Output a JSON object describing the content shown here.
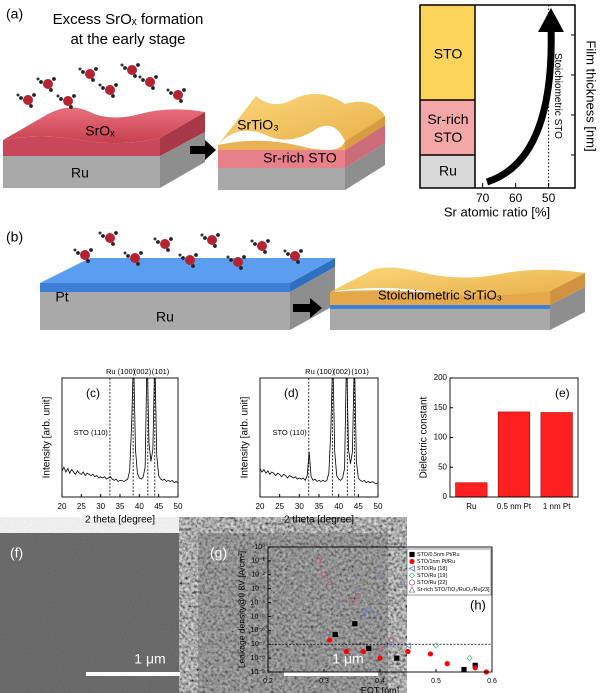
{
  "panel_labels": [
    "(a)",
    "(b)",
    "(c)",
    "(d)",
    "(e)",
    "(f)",
    "(g)",
    "(h)"
  ],
  "schematic_a": {
    "caption": [
      "Excess SrOₓ formation",
      "at the early stage"
    ],
    "before_layers": [
      "SrOₓ",
      "Ru"
    ],
    "after_layers": [
      "SrTiO₃",
      "Sr-rich STO"
    ]
  },
  "composition_axis": {
    "layers": [
      "STO",
      "Sr-rich STO",
      "Ru"
    ],
    "xlim": [
      89,
      42
    ],
    "xticks": [
      70,
      60,
      50
    ],
    "xlabel": "Sr atomic ratio [%]",
    "ylabel": "Film thickness [nm]",
    "stoichiometric_line": 50,
    "stoichiometric_label": "Stoichiometric STO"
  },
  "schematic_b": {
    "layers": [
      "Pt",
      "Ru"
    ],
    "result": "Stoichiometric SrTiO₃"
  },
  "images": [
    {
      "scale_bar": "1 μm"
    },
    {
      "scale_bar": "1 μm"
    }
  ],
  "chart_data": [
    {
      "type": "line",
      "xlabel": "2 theta [degree]",
      "ylabel": "Intensity [arb. unit]",
      "annotations": [
        "Ru (100)",
        "(002)",
        "(101)",
        "STO (110)"
      ],
      "reference_lines": [
        38.4,
        42.2,
        44.0,
        32.4
      ],
      "xlim": [
        20,
        50
      ],
      "ylim": [
        0,
        100
      ],
      "xticks": [
        20,
        25,
        30,
        35,
        40,
        45,
        50
      ],
      "x": [
        20,
        20.5,
        21,
        21.5,
        22,
        22.5,
        23,
        23.5,
        24,
        24.5,
        25,
        25.5,
        26,
        26.5,
        27,
        27.5,
        28,
        28.5,
        29,
        29.5,
        30,
        30.5,
        31,
        31.5,
        32,
        32.5,
        33,
        33.5,
        34,
        34.5,
        35,
        35.5,
        36,
        36.5,
        37,
        37.5,
        38,
        38.5,
        39,
        39.5,
        40,
        40.5,
        41,
        41.5,
        42,
        42.5,
        43,
        43.5,
        44,
        44.5,
        45,
        45.5,
        46,
        46.5,
        47,
        47.5,
        48,
        48.5,
        49,
        49.5,
        50
      ],
      "series": [
        {
          "color": "#000000",
          "values": [
            22,
            25,
            21,
            24,
            20,
            23,
            21,
            19,
            22,
            20,
            19,
            21,
            18,
            20,
            19,
            18,
            19,
            17,
            18,
            16,
            17,
            16,
            17,
            15,
            16,
            17,
            15,
            14,
            15,
            13,
            14,
            14,
            13,
            14,
            15,
            22,
            60,
            120,
            40,
            20,
            16,
            15,
            17,
            25,
            120,
            45,
            30,
            40,
            120,
            35,
            18,
            15,
            14,
            15,
            13,
            14,
            13,
            14,
            12,
            13,
            12
          ]
        }
      ]
    },
    {
      "type": "line",
      "xlabel": "2 theta [degree]",
      "ylabel": "Intensity [arb. unit]",
      "annotations": [
        "Ru (100)",
        "(002)",
        "(101)",
        "STO (110)"
      ],
      "reference_lines": [
        38.4,
        42.2,
        44.0,
        32.4
      ],
      "xlim": [
        20,
        50
      ],
      "ylim": [
        0,
        100
      ],
      "xticks": [
        20,
        25,
        30,
        35,
        40,
        45,
        50
      ],
      "x": [
        20,
        20.5,
        21,
        21.5,
        22,
        22.5,
        23,
        23.5,
        24,
        24.5,
        25,
        25.5,
        26,
        26.5,
        27,
        27.5,
        28,
        28.5,
        29,
        29.5,
        30,
        30.5,
        31,
        31.5,
        32,
        32.5,
        33,
        33.5,
        34,
        34.5,
        35,
        35.5,
        36,
        36.5,
        37,
        37.5,
        38,
        38.5,
        39,
        39.5,
        40,
        40.5,
        41,
        41.5,
        42,
        42.5,
        43,
        43.5,
        44,
        44.5,
        45,
        45.5,
        46,
        46.5,
        47,
        47.5,
        48,
        48.5,
        49,
        49.5,
        50
      ],
      "series": [
        {
          "color": "#000000",
          "values": [
            24,
            21,
            23,
            20,
            22,
            19,
            21,
            20,
            18,
            20,
            19,
            17,
            19,
            18,
            16,
            18,
            17,
            16,
            17,
            15,
            16,
            15,
            16,
            14,
            18,
            38,
            17,
            14,
            15,
            13,
            14,
            13,
            14,
            13,
            14,
            20,
            55,
            120,
            38,
            18,
            15,
            14,
            16,
            24,
            120,
            40,
            28,
            38,
            120,
            30,
            16,
            14,
            13,
            14,
            12,
            13,
            12,
            13,
            12,
            11,
            12
          ]
        }
      ]
    },
    {
      "type": "bar",
      "ylabel": "Dielectric constant",
      "categories": [
        "Ru",
        "0.5 nm Pt",
        "1 nm Pt"
      ],
      "values": [
        24,
        143,
        142
      ],
      "color": "#ff2020",
      "ylim": [
        0,
        200
      ],
      "yticks": [
        0,
        50,
        100,
        150,
        200
      ]
    },
    {
      "type": "scatter",
      "xlabel": "EOT [nm]",
      "ylabel": "Leakage density@0.8V [A/cm²]",
      "log_y": true,
      "legend": "upper right",
      "xlim": [
        0.2,
        0.6
      ],
      "ylim": [
        1e-09,
        1
      ],
      "xticks": [
        0.2,
        0.3,
        0.4,
        0.5,
        0.6
      ],
      "yticks": [
        {
          "value": 1,
          "label": "10⁰"
        },
        {
          "value": 0.1,
          "label": "10⁻¹"
        },
        {
          "value": 0.01,
          "label": "10⁻²"
        },
        {
          "value": 0.001,
          "label": "10⁻³"
        },
        {
          "value": 0.0001,
          "label": "10⁻⁴"
        },
        {
          "value": 1e-05,
          "label": "10⁻⁵"
        },
        {
          "value": 1e-06,
          "label": "10⁻⁶"
        },
        {
          "value": 1e-07,
          "label": "10⁻⁷"
        },
        {
          "value": 1e-08,
          "label": "10⁻⁸"
        },
        {
          "value": 1e-09,
          "label": "10⁻⁹"
        }
      ],
      "reference_line": 1e-07,
      "series": [
        {
          "name": "STO/0.5nm Pt/Ru",
          "color": "#000000",
          "marker": "square",
          "x": [
            0.32,
            0.355,
            0.38,
            0.43,
            0.55,
            0.57
          ],
          "values": [
            5e-07,
            3e-06,
            5e-08,
            1e-08,
            1.5e-09,
            3e-09
          ]
        },
        {
          "name": "STO/1nm Pt/Ru",
          "color": "#ff0000",
          "marker": "circle",
          "x": [
            0.31,
            0.34,
            0.37,
            0.4,
            0.45,
            0.49,
            0.52,
            0.57,
            0.59
          ],
          "values": [
            2e-07,
            3e-08,
            3e-08,
            1e-08,
            3e-08,
            2e-08,
            4e-09,
            2e-09,
            1e-09
          ]
        },
        {
          "name": "STO/Ru [18]",
          "color": "#6a7fd8",
          "marker": "triangle-left",
          "x": [
            0.37,
            0.38,
            0.42,
            0.45
          ],
          "values": [
            2e-05,
            3e-05,
            1e-07,
            8e-08
          ]
        },
        {
          "name": "STO/Ru [19]",
          "color": "#4cbc7a",
          "marker": "diamond",
          "x": [
            0.5,
            0.56
          ],
          "values": [
            8e-08,
            1e-08
          ]
        },
        {
          "name": "STO/Ru [22]",
          "color": "#c05080",
          "marker": "circle-open",
          "x": [
            0.29,
            0.3,
            0.31,
            0.35,
            0.36,
            0.4,
            0.42
          ],
          "values": [
            0.1,
            0.01,
            0.003,
            0.0001,
            0.0003,
            5e-08,
            2e-07
          ]
        },
        {
          "name": "Sr-rich STO/TiO₂/RuO₂/Ru[23]",
          "color": "#8080a0",
          "marker": "triangle-up",
          "x": [
            0.33,
            0.36,
            0.4,
            0.44,
            0.48,
            0.39
          ],
          "values": [
            0.0001,
            0.001,
            0.01,
            0.003,
            0.001,
            1e-05
          ]
        }
      ]
    }
  ]
}
